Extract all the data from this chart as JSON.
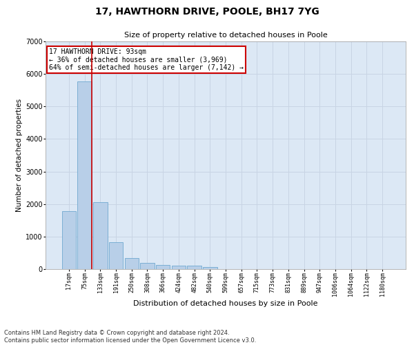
{
  "title": "17, HAWTHORN DRIVE, POOLE, BH17 7YG",
  "subtitle": "Size of property relative to detached houses in Poole",
  "xlabel": "Distribution of detached houses by size in Poole",
  "ylabel": "Number of detached properties",
  "footnote1": "Contains HM Land Registry data © Crown copyright and database right 2024.",
  "footnote2": "Contains public sector information licensed under the Open Government Licence v3.0.",
  "bar_color": "#b8cfe8",
  "bar_edge_color": "#6fa8d0",
  "grid_color": "#c8d4e4",
  "background_color": "#dce8f5",
  "annotation_box_color": "#cc0000",
  "property_line_color": "#cc0000",
  "categories": [
    "17sqm",
    "75sqm",
    "133sqm",
    "191sqm",
    "250sqm",
    "308sqm",
    "366sqm",
    "424sqm",
    "482sqm",
    "540sqm",
    "599sqm",
    "657sqm",
    "715sqm",
    "773sqm",
    "831sqm",
    "889sqm",
    "947sqm",
    "1006sqm",
    "1064sqm",
    "1122sqm",
    "1180sqm"
  ],
  "values": [
    1780,
    5780,
    2060,
    820,
    340,
    190,
    120,
    110,
    110,
    70,
    0,
    0,
    0,
    0,
    0,
    0,
    0,
    0,
    0,
    0,
    0
  ],
  "property_bin_index": 1,
  "annotation_line1": "17 HAWTHORN DRIVE: 93sqm",
  "annotation_line2": "← 36% of detached houses are smaller (3,969)",
  "annotation_line3": "64% of semi-detached houses are larger (7,142) →",
  "ylim": [
    0,
    7000
  ],
  "yticks": [
    0,
    1000,
    2000,
    3000,
    4000,
    5000,
    6000,
    7000
  ],
  "title_fontsize": 10,
  "subtitle_fontsize": 8,
  "xlabel_fontsize": 8,
  "ylabel_fontsize": 7.5,
  "xtick_fontsize": 6,
  "ytick_fontsize": 7,
  "annotation_fontsize": 7,
  "footnote_fontsize": 6
}
